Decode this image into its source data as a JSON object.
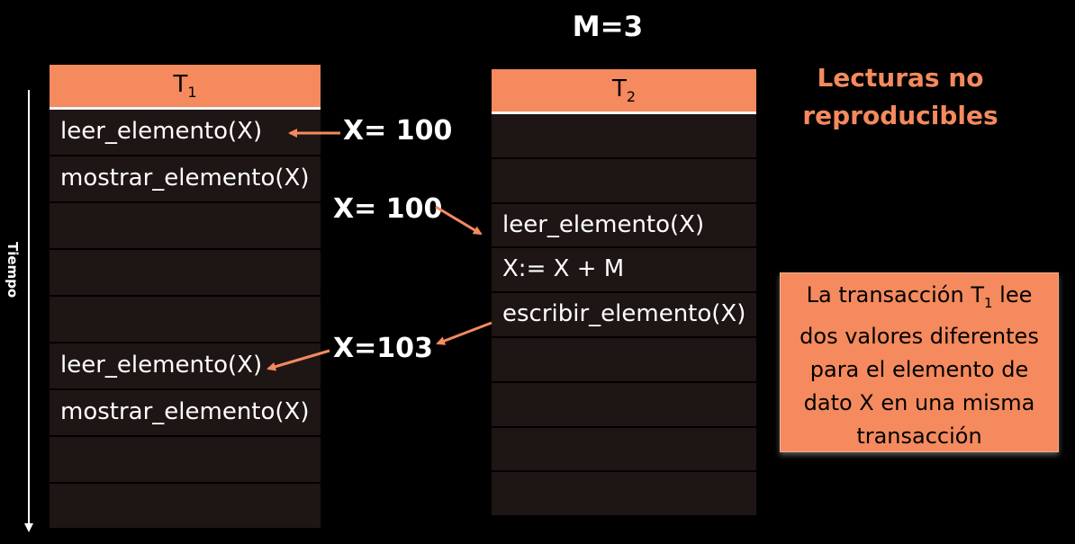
{
  "title": "M=3",
  "heading_lines": [
    "Lecturas  no",
    "reproducibles"
  ],
  "time_axis_label": "Tiempo",
  "t1": {
    "header": "T",
    "header_sub": "1",
    "rows": [
      "leer_elemento(X)",
      "mostrar_elemento(X)",
      "",
      "",
      "",
      "leer_elemento(X)",
      "mostrar_elemento(X)",
      "",
      ""
    ]
  },
  "t2": {
    "header": "T",
    "header_sub": "2",
    "rows": [
      "",
      "",
      "leer_elemento(X)",
      "X:= X + M",
      "escribir_elemento(X)",
      "",
      "",
      "",
      ""
    ]
  },
  "annotations": {
    "x1": "X= 100",
    "x2": "X= 100",
    "x3": "X=103"
  },
  "note": {
    "line1_pre": "La transacción T",
    "line1_sub": "1",
    "line1_post": " lee",
    "line2": "dos valores  diferentes",
    "line3": "para  el  elemento  de",
    "line4": "dato X en una misma",
    "line5": "transacción"
  },
  "colors": {
    "accent": "#F48A5E",
    "row_bg": "#1E1614",
    "background": "#000000"
  }
}
